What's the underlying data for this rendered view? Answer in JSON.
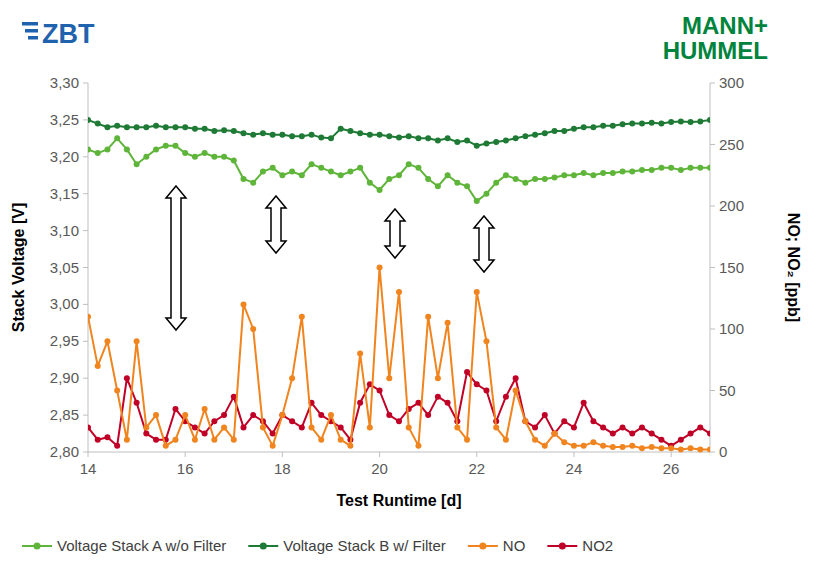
{
  "logos": {
    "left": "ZBT",
    "right_line1": "MANN+",
    "right_line2": "HUMMEL"
  },
  "chart_data": {
    "type": "line",
    "title": "",
    "x_label": "Test Runtime [d]",
    "y_label": "Stack Voltage [V]",
    "y2_label": "NO; NO₂ [ppb]",
    "x": [
      14.0,
      14.2,
      14.4,
      14.6,
      14.8,
      15.0,
      15.2,
      15.4,
      15.6,
      15.8,
      16.0,
      16.2,
      16.4,
      16.6,
      16.8,
      17.0,
      17.2,
      17.4,
      17.6,
      17.8,
      18.0,
      18.2,
      18.4,
      18.6,
      18.8,
      19.0,
      19.2,
      19.4,
      19.6,
      19.8,
      20.0,
      20.2,
      20.4,
      20.6,
      20.8,
      21.0,
      21.2,
      21.4,
      21.6,
      21.8,
      22.0,
      22.2,
      22.4,
      22.6,
      22.8,
      23.0,
      23.2,
      23.4,
      23.6,
      23.8,
      24.0,
      24.2,
      24.4,
      24.6,
      24.8,
      25.0,
      25.2,
      25.4,
      25.6,
      25.8,
      26.0,
      26.2,
      26.4,
      26.6,
      26.8
    ],
    "xlim": [
      14,
      26.8
    ],
    "xticks": [
      14,
      16,
      18,
      20,
      22,
      24,
      26
    ],
    "ylim": [
      2.8,
      3.3
    ],
    "yticks": [
      {
        "value": 2.8,
        "label": "2,80"
      },
      {
        "value": 2.85,
        "label": "2,85"
      },
      {
        "value": 2.9,
        "label": "2,90"
      },
      {
        "value": 2.95,
        "label": "2,95"
      },
      {
        "value": 3.0,
        "label": "3,00"
      },
      {
        "value": 3.05,
        "label": "3,05"
      },
      {
        "value": 3.1,
        "label": "3,10"
      },
      {
        "value": 3.15,
        "label": "3,15"
      },
      {
        "value": 3.2,
        "label": "3,20"
      },
      {
        "value": 3.25,
        "label": "3,25"
      },
      {
        "value": 3.3,
        "label": "3,30"
      }
    ],
    "y2lim": [
      0,
      300
    ],
    "y2ticks": [
      0,
      50,
      100,
      150,
      200,
      250,
      300
    ],
    "grid": false,
    "legend": "bottom",
    "marker": "circle",
    "series": [
      {
        "name": "Voltage Stack A w/o Filter",
        "color": "#5fb53a",
        "values": [
          3.21,
          3.205,
          3.21,
          3.225,
          3.21,
          3.19,
          3.2,
          3.21,
          3.215,
          3.215,
          3.205,
          3.2,
          3.205,
          3.2,
          3.2,
          3.195,
          3.17,
          3.165,
          3.18,
          3.185,
          3.175,
          3.18,
          3.175,
          3.19,
          3.185,
          3.18,
          3.175,
          3.18,
          3.185,
          3.165,
          3.155,
          3.17,
          3.175,
          3.19,
          3.185,
          3.17,
          3.16,
          3.175,
          3.165,
          3.16,
          3.14,
          3.15,
          3.165,
          3.175,
          3.17,
          3.165,
          3.17,
          3.17,
          3.172,
          3.175,
          3.175,
          3.178,
          3.175,
          3.178,
          3.178,
          3.18,
          3.18,
          3.182,
          3.182,
          3.185,
          3.185,
          3.182,
          3.185,
          3.185,
          3.185
        ]
      },
      {
        "name": "Voltage Stack B w/ Filter",
        "color": "#1e7a35",
        "values": [
          3.25,
          3.245,
          3.24,
          3.242,
          3.24,
          3.24,
          3.24,
          3.242,
          3.24,
          3.24,
          3.24,
          3.238,
          3.238,
          3.235,
          3.236,
          3.235,
          3.232,
          3.23,
          3.232,
          3.23,
          3.23,
          3.228,
          3.228,
          3.23,
          3.226,
          3.225,
          3.238,
          3.235,
          3.232,
          3.23,
          3.23,
          3.228,
          3.226,
          3.228,
          3.225,
          3.225,
          3.222,
          3.225,
          3.22,
          3.222,
          3.215,
          3.218,
          3.22,
          3.222,
          3.225,
          3.228,
          3.23,
          3.232,
          3.235,
          3.235,
          3.238,
          3.24,
          3.24,
          3.242,
          3.242,
          3.244,
          3.245,
          3.245,
          3.246,
          3.245,
          3.247,
          3.248,
          3.247,
          3.248,
          3.25
        ]
      },
      {
        "name": "NO",
        "color": "#f0841f",
        "axis": "y2",
        "values": [
          110,
          70,
          90,
          50,
          10,
          90,
          20,
          30,
          5,
          10,
          30,
          10,
          35,
          10,
          20,
          10,
          120,
          100,
          20,
          5,
          30,
          60,
          110,
          20,
          10,
          30,
          10,
          5,
          80,
          20,
          150,
          60,
          130,
          20,
          5,
          110,
          60,
          105,
          20,
          10,
          130,
          90,
          20,
          10,
          50,
          25,
          10,
          5,
          15,
          8,
          5,
          5,
          8,
          5,
          4,
          4,
          5,
          3,
          4,
          3,
          3,
          2,
          3,
          2,
          2
        ]
      },
      {
        "name": "NO2",
        "color": "#c00026",
        "axis": "y2",
        "values": [
          20,
          10,
          12,
          5,
          60,
          40,
          15,
          10,
          10,
          35,
          25,
          20,
          15,
          25,
          30,
          45,
          20,
          30,
          25,
          15,
          30,
          25,
          20,
          40,
          30,
          25,
          20,
          10,
          40,
          55,
          50,
          30,
          25,
          35,
          40,
          30,
          45,
          40,
          25,
          65,
          55,
          50,
          25,
          45,
          60,
          25,
          20,
          30,
          15,
          25,
          20,
          40,
          25,
          20,
          15,
          20,
          15,
          20,
          15,
          10,
          5,
          10,
          15,
          20,
          15
        ]
      }
    ]
  }
}
